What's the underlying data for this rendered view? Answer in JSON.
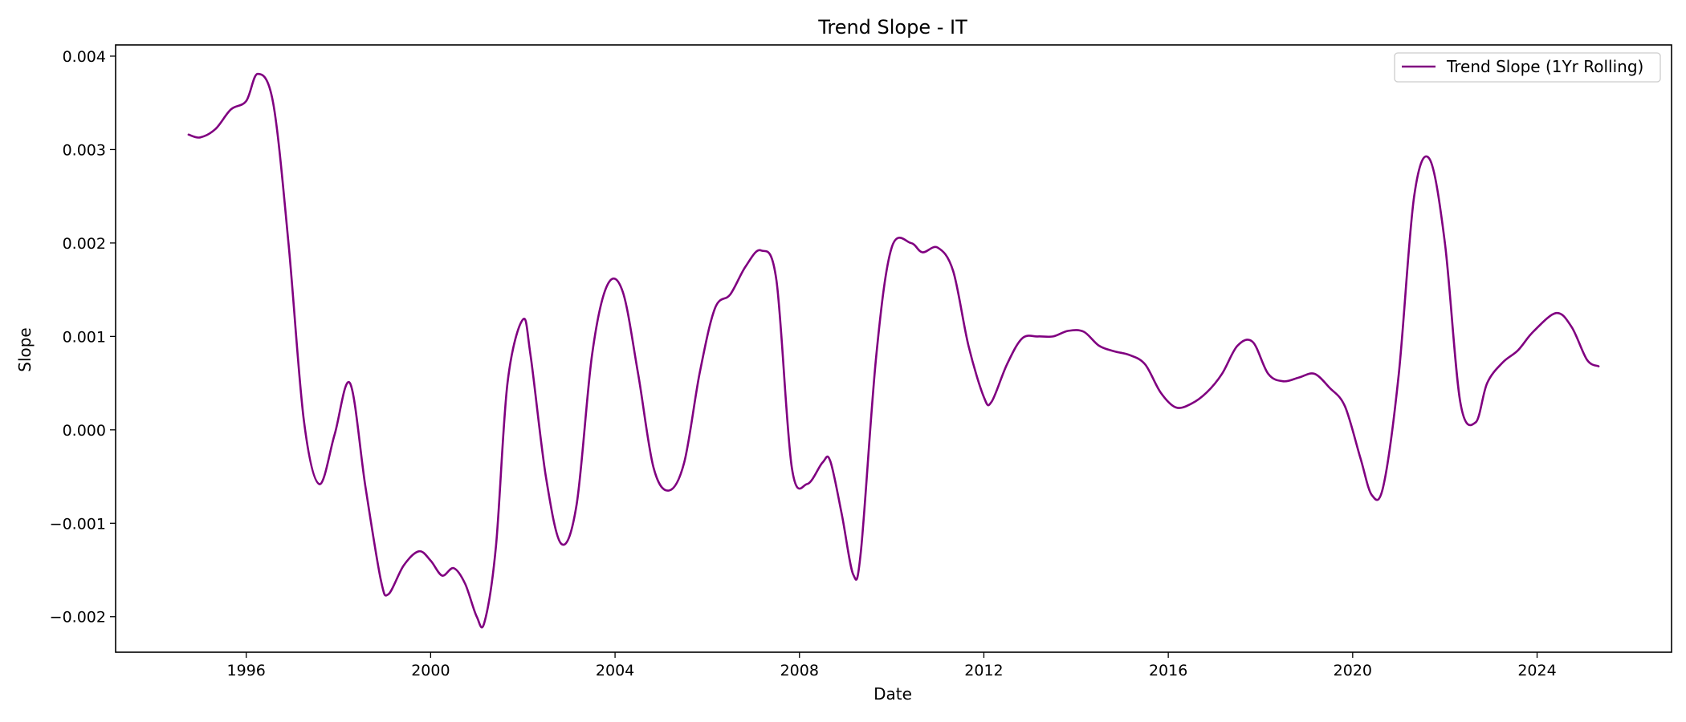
{
  "chart_data": {
    "type": "line",
    "title": "Trend Slope - IT",
    "xlabel": "Date",
    "ylabel": "Slope",
    "x_ticks": [
      "1996",
      "2000",
      "2004",
      "2008",
      "2012",
      "2016",
      "2020",
      "2024"
    ],
    "y_ticks": [
      "0.004",
      "0.003",
      "0.002",
      "0.001",
      "0.000",
      "−0.001",
      "−0.002"
    ],
    "xlim": [
      "1993-03",
      "2026-12"
    ],
    "ylim": [
      -0.00238,
      0.00412
    ],
    "grid": false,
    "legend_position": "top-right",
    "series": [
      {
        "name": "Trend Slope (1Yr Rolling)",
        "color": "#800080",
        "x": [
          "1994-10",
          "1995-01",
          "1995-05",
          "1995-09",
          "1996-01",
          "1996-04",
          "1996-08",
          "1996-12",
          "1997-04",
          "1997-08",
          "1997-12",
          "1998-04",
          "1998-08",
          "1998-12",
          "1999-02",
          "1999-06",
          "1999-10",
          "2000-01",
          "2000-04",
          "2000-07",
          "2000-10",
          "2001-01",
          "2001-03",
          "2001-06",
          "2001-09",
          "2002-01",
          "2002-03",
          "2002-07",
          "2002-11",
          "2003-03",
          "2003-07",
          "2003-11",
          "2004-03",
          "2004-07",
          "2004-11",
          "2005-03",
          "2005-07",
          "2005-11",
          "2006-03",
          "2006-07",
          "2006-11",
          "2007-03",
          "2007-07",
          "2007-11",
          "2008-03",
          "2008-07",
          "2008-09",
          "2008-12",
          "2009-03",
          "2009-05",
          "2009-09",
          "2010-01",
          "2010-06",
          "2010-09",
          "2011-01",
          "2011-05",
          "2011-09",
          "2012-01",
          "2012-03",
          "2012-07",
          "2012-11",
          "2013-03",
          "2013-07",
          "2013-11",
          "2014-03",
          "2014-07",
          "2014-11",
          "2015-03",
          "2015-07",
          "2015-11",
          "2016-03",
          "2016-07",
          "2016-11",
          "2017-03",
          "2017-07",
          "2017-11",
          "2018-03",
          "2018-07",
          "2018-11",
          "2019-03",
          "2019-07",
          "2019-11",
          "2020-03",
          "2020-06",
          "2020-09",
          "2021-01",
          "2021-05",
          "2021-09",
          "2022-01",
          "2022-05",
          "2022-09",
          "2022-12",
          "2023-04",
          "2023-08",
          "2023-12",
          "2024-06",
          "2024-10",
          "2025-02",
          "2025-05"
        ],
        "y": [
          0.00316,
          0.00313,
          0.00322,
          0.00343,
          0.00352,
          0.00381,
          0.0035,
          0.002,
          0.0001,
          -0.00058,
          -5e-05,
          0.0005,
          -0.0006,
          -0.0016,
          -0.00176,
          -0.00145,
          -0.0013,
          -0.0014,
          -0.00156,
          -0.00148,
          -0.00165,
          -0.002,
          -0.00206,
          -0.00125,
          0.0005,
          0.00118,
          0.0008,
          -0.0005,
          -0.00122,
          -0.0008,
          0.0008,
          0.00155,
          0.00148,
          0.0006,
          -0.0004,
          -0.00065,
          -0.00035,
          0.0006,
          0.0013,
          0.00145,
          0.00175,
          0.00192,
          0.0016,
          -0.0004,
          -0.00058,
          -0.00035,
          -0.00033,
          -0.0009,
          -0.00155,
          -0.0013,
          0.0008,
          0.00195,
          0.002,
          0.0019,
          0.00195,
          0.0017,
          0.0009,
          0.00035,
          0.0003,
          0.0007,
          0.00098,
          0.001,
          0.001,
          0.00106,
          0.00105,
          0.0009,
          0.00084,
          0.0008,
          0.0007,
          0.0004,
          0.00024,
          0.00028,
          0.0004,
          0.0006,
          0.0009,
          0.00094,
          0.0006,
          0.00052,
          0.00056,
          0.0006,
          0.00045,
          0.00025,
          -0.0003,
          -0.0007,
          -0.0006,
          0.0006,
          0.0025,
          0.0029,
          0.002,
          0.0003,
          8e-05,
          0.0005,
          0.00072,
          0.00085,
          0.00105,
          0.00125,
          0.0011,
          0.00075,
          0.00068
        ]
      }
    ]
  }
}
